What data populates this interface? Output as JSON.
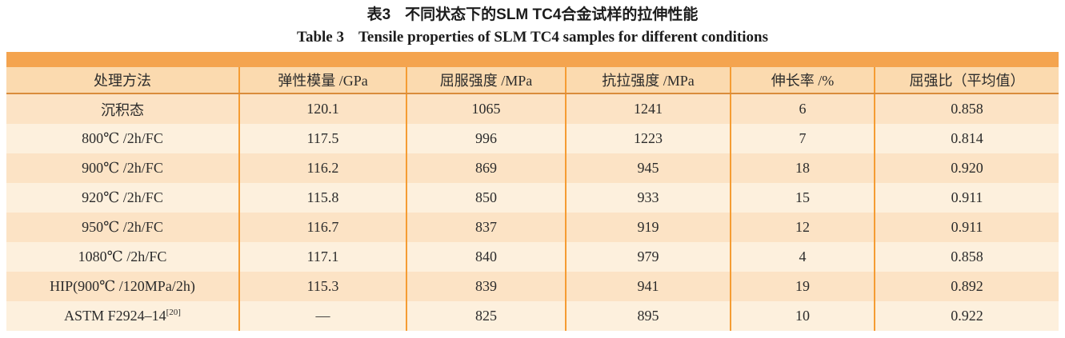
{
  "caption": {
    "zh_label": "表3",
    "zh_text": "不同状态下的SLM TC4合金试样的拉伸性能",
    "en_label": "Table 3",
    "en_text": "Tensile properties of SLM TC4 samples for different conditions"
  },
  "table": {
    "headers": [
      "处理方法",
      "弹性模量 /GPa",
      "屈服强度 /MPa",
      "抗拉强度 /MPa",
      "伸长率 /%",
      "屈强比（平均值）"
    ],
    "rows": [
      {
        "cells": [
          "沉积态",
          "120.1",
          "1065",
          "1241",
          "6",
          "0.858"
        ],
        "sup": ""
      },
      {
        "cells": [
          "800℃ /2h/FC",
          "117.5",
          "996",
          "1223",
          "7",
          "0.814"
        ],
        "sup": ""
      },
      {
        "cells": [
          "900℃ /2h/FC",
          "116.2",
          "869",
          "945",
          "18",
          "0.920"
        ],
        "sup": ""
      },
      {
        "cells": [
          "920℃ /2h/FC",
          "115.8",
          "850",
          "933",
          "15",
          "0.911"
        ],
        "sup": ""
      },
      {
        "cells": [
          "950℃ /2h/FC",
          "116.7",
          "837",
          "919",
          "12",
          "0.911"
        ],
        "sup": ""
      },
      {
        "cells": [
          "1080℃ /2h/FC",
          "117.1",
          "840",
          "979",
          "4",
          "0.858"
        ],
        "sup": ""
      },
      {
        "cells": [
          "HIP(900℃ /120MPa/2h)",
          "115.3",
          "839",
          "941",
          "19",
          "0.892"
        ],
        "sup": ""
      },
      {
        "cells": [
          "ASTM F2924–14",
          "—",
          "825",
          "895",
          "10",
          "0.922"
        ],
        "sup": "[20]"
      }
    ]
  },
  "colors": {
    "band": "#F4A44F",
    "grid_line": "#F59C33",
    "header_underline": "#D98C3C",
    "header_bg": "#FBDAAF",
    "row_odd_bg": "#FCE3C5",
    "row_even_bg": "#FDF0DD",
    "text": "#2B2B2B"
  }
}
